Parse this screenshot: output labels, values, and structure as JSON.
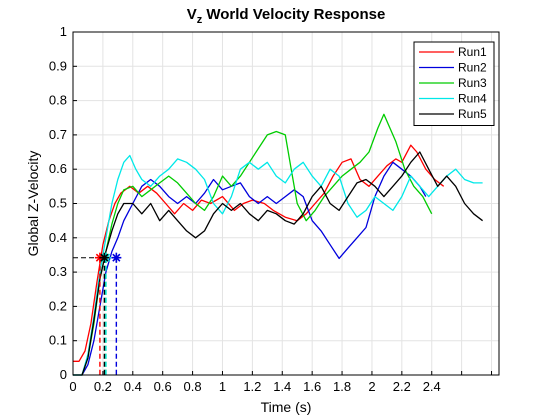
{
  "chart_data": {
    "type": "line",
    "title": {
      "main": "V",
      "sub": "z",
      "rest": " World Velocity Response"
    },
    "xlabel": "Time (s)",
    "ylabel": "Global Z-Velocity",
    "xlim": [
      0,
      2.85
    ],
    "ylim": [
      0,
      1
    ],
    "grid": true,
    "legend_position": "top-right",
    "x_ticks": [
      {
        "v": 0,
        "label": "0"
      },
      {
        "v": 0.2,
        "label": "0.2"
      },
      {
        "v": 0.4,
        "label": "0.4"
      },
      {
        "v": 0.6,
        "label": "0.6"
      },
      {
        "v": 0.8,
        "label": "0.8"
      },
      {
        "v": 1.0,
        "label": "1"
      },
      {
        "v": 1.2,
        "label": "1.2"
      },
      {
        "v": 1.4,
        "label": "1.4"
      },
      {
        "v": 1.6,
        "label": "1.6"
      },
      {
        "v": 1.8,
        "label": "1.8"
      },
      {
        "v": 2.0,
        "label": "2"
      },
      {
        "v": 2.2,
        "label": "2.2"
      },
      {
        "v": 2.4,
        "label": "2.4"
      }
    ],
    "x_grid": [
      0,
      0.2,
      0.4,
      0.6,
      0.8,
      1.0,
      1.2,
      1.4,
      1.6,
      1.8,
      2.0,
      2.2,
      2.4,
      2.6,
      2.8
    ],
    "y_ticks": [
      {
        "v": 0,
        "label": "0"
      },
      {
        "v": 0.1,
        "label": "0.1"
      },
      {
        "v": 0.2,
        "label": "0.2"
      },
      {
        "v": 0.3,
        "label": "0.3"
      },
      {
        "v": 0.4,
        "label": "0.4"
      },
      {
        "v": 0.5,
        "label": "0.5"
      },
      {
        "v": 0.6,
        "label": "0.6"
      },
      {
        "v": 0.7,
        "label": "0.7"
      },
      {
        "v": 0.8,
        "label": "0.8"
      },
      {
        "v": 0.9,
        "label": "0.9"
      },
      {
        "v": 1.0,
        "label": "1"
      }
    ],
    "threshold": 0.342,
    "series": [
      {
        "name": "Run1",
        "color": "#ff0000",
        "rise_time": 0.18,
        "points": [
          [
            0,
            0.04
          ],
          [
            0.04,
            0.04
          ],
          [
            0.08,
            0.07
          ],
          [
            0.12,
            0.15
          ],
          [
            0.16,
            0.27
          ],
          [
            0.2,
            0.38
          ],
          [
            0.24,
            0.45
          ],
          [
            0.28,
            0.5
          ],
          [
            0.32,
            0.53
          ],
          [
            0.38,
            0.55
          ],
          [
            0.44,
            0.53
          ],
          [
            0.5,
            0.55
          ],
          [
            0.56,
            0.53
          ],
          [
            0.62,
            0.5
          ],
          [
            0.68,
            0.47
          ],
          [
            0.74,
            0.5
          ],
          [
            0.8,
            0.48
          ],
          [
            0.86,
            0.51
          ],
          [
            0.92,
            0.5
          ],
          [
            1.0,
            0.52
          ],
          [
            1.08,
            0.48
          ],
          [
            1.14,
            0.5
          ],
          [
            1.2,
            0.51
          ],
          [
            1.28,
            0.5
          ],
          [
            1.34,
            0.48
          ],
          [
            1.42,
            0.46
          ],
          [
            1.5,
            0.45
          ],
          [
            1.56,
            0.47
          ],
          [
            1.62,
            0.5
          ],
          [
            1.68,
            0.53
          ],
          [
            1.74,
            0.58
          ],
          [
            1.8,
            0.62
          ],
          [
            1.86,
            0.63
          ],
          [
            1.92,
            0.57
          ],
          [
            1.98,
            0.55
          ],
          [
            2.04,
            0.58
          ],
          [
            2.1,
            0.61
          ],
          [
            2.16,
            0.63
          ],
          [
            2.2,
            0.62
          ],
          [
            2.26,
            0.67
          ],
          [
            2.3,
            0.65
          ],
          [
            2.36,
            0.6
          ],
          [
            2.42,
            0.57
          ],
          [
            2.48,
            0.55
          ]
        ]
      },
      {
        "name": "Run2",
        "color": "#0000dd",
        "rise_time": 0.29,
        "points": [
          [
            0,
            0
          ],
          [
            0.06,
            0
          ],
          [
            0.1,
            0.03
          ],
          [
            0.14,
            0.1
          ],
          [
            0.18,
            0.2
          ],
          [
            0.22,
            0.3
          ],
          [
            0.26,
            0.36
          ],
          [
            0.3,
            0.4
          ],
          [
            0.34,
            0.45
          ],
          [
            0.4,
            0.5
          ],
          [
            0.46,
            0.55
          ],
          [
            0.52,
            0.57
          ],
          [
            0.58,
            0.55
          ],
          [
            0.64,
            0.52
          ],
          [
            0.7,
            0.5
          ],
          [
            0.76,
            0.52
          ],
          [
            0.82,
            0.5
          ],
          [
            0.88,
            0.53
          ],
          [
            0.94,
            0.57
          ],
          [
            1.0,
            0.54
          ],
          [
            1.06,
            0.55
          ],
          [
            1.12,
            0.56
          ],
          [
            1.18,
            0.52
          ],
          [
            1.24,
            0.5
          ],
          [
            1.3,
            0.52
          ],
          [
            1.36,
            0.5
          ],
          [
            1.42,
            0.52
          ],
          [
            1.48,
            0.54
          ],
          [
            1.54,
            0.52
          ],
          [
            1.6,
            0.45
          ],
          [
            1.66,
            0.42
          ],
          [
            1.72,
            0.38
          ],
          [
            1.78,
            0.34
          ],
          [
            1.84,
            0.37
          ],
          [
            1.9,
            0.4
          ],
          [
            1.96,
            0.43
          ],
          [
            2.02,
            0.52
          ],
          [
            2.08,
            0.58
          ],
          [
            2.14,
            0.62
          ],
          [
            2.2,
            0.6
          ],
          [
            2.26,
            0.58
          ],
          [
            2.32,
            0.55
          ],
          [
            2.36,
            0.52
          ]
        ]
      },
      {
        "name": "Run3",
        "color": "#00cc00",
        "rise_time": 0.22,
        "points": [
          [
            0,
            0
          ],
          [
            0.06,
            0
          ],
          [
            0.1,
            0.05
          ],
          [
            0.14,
            0.15
          ],
          [
            0.18,
            0.28
          ],
          [
            0.22,
            0.36
          ],
          [
            0.26,
            0.44
          ],
          [
            0.3,
            0.5
          ],
          [
            0.34,
            0.54
          ],
          [
            0.4,
            0.55
          ],
          [
            0.46,
            0.52
          ],
          [
            0.52,
            0.54
          ],
          [
            0.58,
            0.56
          ],
          [
            0.64,
            0.58
          ],
          [
            0.7,
            0.56
          ],
          [
            0.76,
            0.53
          ],
          [
            0.82,
            0.5
          ],
          [
            0.88,
            0.48
          ],
          [
            0.94,
            0.52
          ],
          [
            1.0,
            0.58
          ],
          [
            1.06,
            0.55
          ],
          [
            1.12,
            0.58
          ],
          [
            1.18,
            0.62
          ],
          [
            1.24,
            0.66
          ],
          [
            1.3,
            0.7
          ],
          [
            1.36,
            0.71
          ],
          [
            1.42,
            0.7
          ],
          [
            1.46,
            0.6
          ],
          [
            1.5,
            0.5
          ],
          [
            1.56,
            0.45
          ],
          [
            1.62,
            0.48
          ],
          [
            1.68,
            0.52
          ],
          [
            1.74,
            0.55
          ],
          [
            1.8,
            0.58
          ],
          [
            1.86,
            0.6
          ],
          [
            1.92,
            0.62
          ],
          [
            1.98,
            0.65
          ],
          [
            2.04,
            0.72
          ],
          [
            2.08,
            0.76
          ],
          [
            2.12,
            0.72
          ],
          [
            2.16,
            0.68
          ],
          [
            2.22,
            0.6
          ],
          [
            2.28,
            0.55
          ],
          [
            2.34,
            0.52
          ],
          [
            2.4,
            0.47
          ]
        ]
      },
      {
        "name": "Run4",
        "color": "#00e8e8",
        "rise_time": 0.22,
        "points": [
          [
            0,
            0
          ],
          [
            0.06,
            0
          ],
          [
            0.1,
            0.06
          ],
          [
            0.14,
            0.17
          ],
          [
            0.18,
            0.3
          ],
          [
            0.22,
            0.4
          ],
          [
            0.26,
            0.5
          ],
          [
            0.3,
            0.57
          ],
          [
            0.34,
            0.62
          ],
          [
            0.38,
            0.64
          ],
          [
            0.42,
            0.6
          ],
          [
            0.46,
            0.57
          ],
          [
            0.52,
            0.55
          ],
          [
            0.58,
            0.58
          ],
          [
            0.64,
            0.6
          ],
          [
            0.7,
            0.63
          ],
          [
            0.76,
            0.62
          ],
          [
            0.82,
            0.6
          ],
          [
            0.88,
            0.57
          ],
          [
            0.94,
            0.5
          ],
          [
            1.0,
            0.47
          ],
          [
            1.06,
            0.52
          ],
          [
            1.12,
            0.6
          ],
          [
            1.18,
            0.62
          ],
          [
            1.24,
            0.6
          ],
          [
            1.3,
            0.62
          ],
          [
            1.36,
            0.58
          ],
          [
            1.42,
            0.56
          ],
          [
            1.48,
            0.6
          ],
          [
            1.54,
            0.62
          ],
          [
            1.6,
            0.58
          ],
          [
            1.66,
            0.55
          ],
          [
            1.72,
            0.6
          ],
          [
            1.78,
            0.58
          ],
          [
            1.84,
            0.5
          ],
          [
            1.9,
            0.46
          ],
          [
            1.96,
            0.48
          ],
          [
            2.02,
            0.52
          ],
          [
            2.08,
            0.5
          ],
          [
            2.14,
            0.48
          ],
          [
            2.2,
            0.52
          ],
          [
            2.26,
            0.58
          ],
          [
            2.32,
            0.55
          ],
          [
            2.38,
            0.52
          ],
          [
            2.44,
            0.55
          ],
          [
            2.5,
            0.58
          ],
          [
            2.56,
            0.6
          ],
          [
            2.62,
            0.57
          ],
          [
            2.68,
            0.56
          ],
          [
            2.74,
            0.56
          ]
        ]
      },
      {
        "name": "Run5",
        "color": "#000000",
        "rise_time": 0.21,
        "points": [
          [
            0,
            0
          ],
          [
            0.06,
            0
          ],
          [
            0.1,
            0.05
          ],
          [
            0.14,
            0.16
          ],
          [
            0.18,
            0.28
          ],
          [
            0.22,
            0.36
          ],
          [
            0.26,
            0.42
          ],
          [
            0.3,
            0.47
          ],
          [
            0.34,
            0.5
          ],
          [
            0.4,
            0.5
          ],
          [
            0.46,
            0.47
          ],
          [
            0.52,
            0.5
          ],
          [
            0.58,
            0.45
          ],
          [
            0.64,
            0.48
          ],
          [
            0.7,
            0.45
          ],
          [
            0.76,
            0.42
          ],
          [
            0.82,
            0.4
          ],
          [
            0.88,
            0.42
          ],
          [
            0.94,
            0.47
          ],
          [
            1.0,
            0.5
          ],
          [
            1.06,
            0.48
          ],
          [
            1.12,
            0.5
          ],
          [
            1.18,
            0.47
          ],
          [
            1.24,
            0.45
          ],
          [
            1.3,
            0.48
          ],
          [
            1.36,
            0.47
          ],
          [
            1.42,
            0.45
          ],
          [
            1.48,
            0.44
          ],
          [
            1.54,
            0.47
          ],
          [
            1.6,
            0.52
          ],
          [
            1.66,
            0.55
          ],
          [
            1.72,
            0.5
          ],
          [
            1.78,
            0.48
          ],
          [
            1.84,
            0.52
          ],
          [
            1.9,
            0.56
          ],
          [
            1.96,
            0.57
          ],
          [
            2.02,
            0.55
          ],
          [
            2.08,
            0.52
          ],
          [
            2.14,
            0.55
          ],
          [
            2.2,
            0.58
          ],
          [
            2.26,
            0.62
          ],
          [
            2.32,
            0.65
          ],
          [
            2.38,
            0.6
          ],
          [
            2.44,
            0.55
          ],
          [
            2.5,
            0.58
          ],
          [
            2.56,
            0.55
          ],
          [
            2.62,
            0.5
          ],
          [
            2.68,
            0.47
          ],
          [
            2.74,
            0.45
          ]
        ]
      }
    ]
  }
}
